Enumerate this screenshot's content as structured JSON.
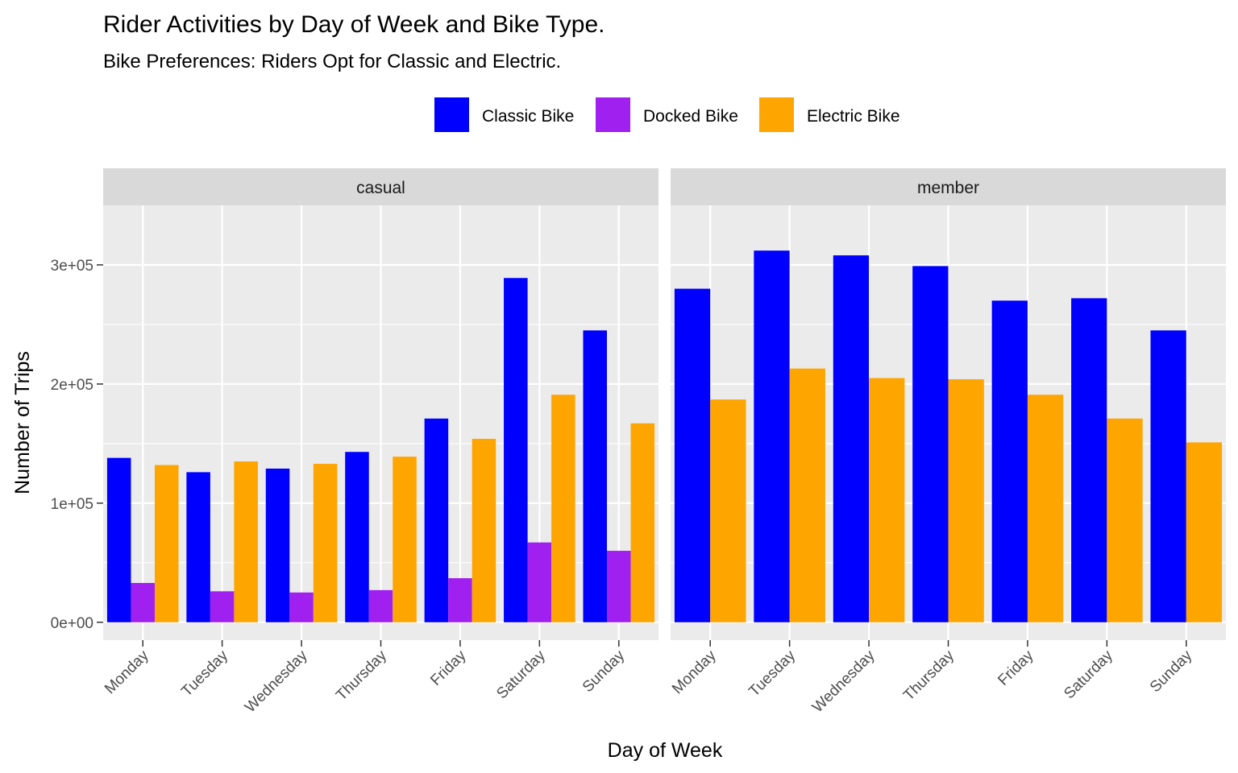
{
  "chart_data": {
    "type": "bar",
    "title": "Rider Activities by Day of Week and Bike Type.",
    "subtitle": "Bike Preferences: Riders Opt for Classic and Electric.",
    "xlabel": "Day of Week",
    "ylabel": "Number of Trips",
    "ylim": [
      -15000,
      350000
    ],
    "yticks": [
      0,
      100000,
      200000,
      300000
    ],
    "ytick_labels": [
      "0e+00",
      "1e+05",
      "2e+05",
      "3e+05"
    ],
    "grid": true,
    "legend_position": "top",
    "categories": [
      "Monday",
      "Tuesday",
      "Wednesday",
      "Thursday",
      "Friday",
      "Saturday",
      "Sunday"
    ],
    "series_meta": [
      {
        "name": "Classic Bike",
        "color": "#0000ff"
      },
      {
        "name": "Docked Bike",
        "color": "#a020f0"
      },
      {
        "name": "Electric Bike",
        "color": "#ffa500"
      }
    ],
    "facets": [
      {
        "label": "casual",
        "series": [
          {
            "name": "Classic Bike",
            "values": [
              138000,
              126000,
              129000,
              143000,
              171000,
              289000,
              245000
            ]
          },
          {
            "name": "Docked Bike",
            "values": [
              33000,
              26000,
              25000,
              27000,
              37000,
              67000,
              60000
            ]
          },
          {
            "name": "Electric Bike",
            "values": [
              132000,
              135000,
              133000,
              139000,
              154000,
              191000,
              167000
            ]
          }
        ]
      },
      {
        "label": "member",
        "series": [
          {
            "name": "Classic Bike",
            "values": [
              280000,
              312000,
              308000,
              299000,
              270000,
              272000,
              245000
            ]
          },
          {
            "name": "Electric Bike",
            "values": [
              187000,
              213000,
              205000,
              204000,
              191000,
              171000,
              151000
            ]
          }
        ]
      }
    ]
  }
}
